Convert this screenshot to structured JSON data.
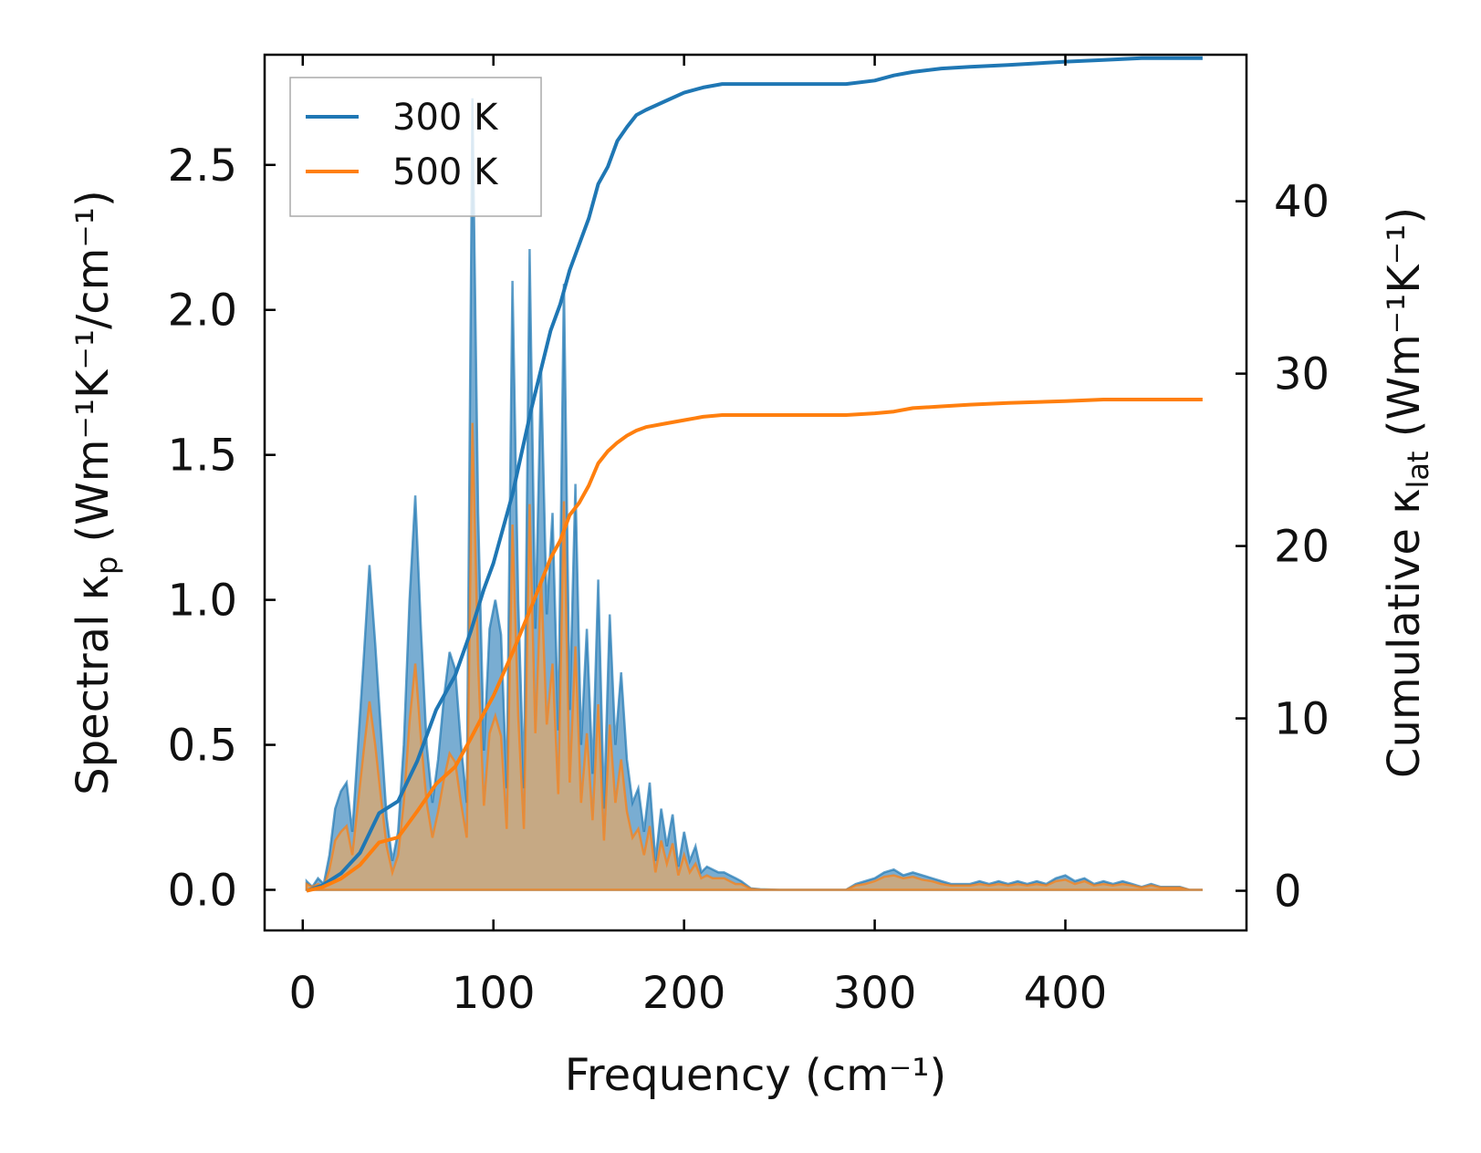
{
  "chart_data": {
    "type": "line",
    "title": "",
    "xlabel": "Frequency (cm⁻¹)",
    "ylabel_left": {
      "prefix": "Spectral κ",
      "subscript": "p",
      "suffix": " (Wm⁻¹K⁻¹/cm⁻¹)"
    },
    "ylabel_right": {
      "prefix": "Cumulative κ",
      "subscript": "lat",
      "suffix": " (Wm⁻¹K⁻¹)"
    },
    "xlim": [
      -20,
      495
    ],
    "ylim_left": [
      -0.14,
      2.88
    ],
    "ylim_right": [
      -2.3,
      48.5
    ],
    "xticks": [
      0,
      100,
      200,
      300,
      400
    ],
    "xtick_labels": [
      "0",
      "100",
      "200",
      "300",
      "400"
    ],
    "yticks_left": [
      0.0,
      0.5,
      1.0,
      1.5,
      2.0,
      2.5
    ],
    "ytick_labels_left": [
      "0.0",
      "0.5",
      "1.0",
      "1.5",
      "2.0",
      "2.5"
    ],
    "yticks_right": [
      0,
      10,
      20,
      30,
      40
    ],
    "ytick_labels_right": [
      "0",
      "10",
      "20",
      "30",
      "40"
    ],
    "legend_position": "top-left",
    "series": [
      {
        "name": "300 K",
        "color": "#1f77b4",
        "fill_color": "#1f77b4",
        "spectral": {
          "x": [
            2,
            5,
            8,
            11,
            14,
            17,
            20,
            23,
            26,
            29,
            32,
            35,
            38,
            41,
            44,
            47,
            50,
            53,
            56,
            59,
            62,
            65,
            68,
            71,
            74,
            77,
            80,
            83,
            86,
            89,
            92,
            95,
            98,
            101,
            104,
            107,
            110,
            113,
            116,
            119,
            122,
            125,
            128,
            131,
            134,
            137,
            140,
            143,
            146,
            149,
            152,
            155,
            158,
            161,
            164,
            167,
            170,
            173,
            176,
            179,
            182,
            185,
            188,
            191,
            194,
            197,
            200,
            203,
            206,
            209,
            212,
            215,
            218,
            221,
            224,
            227,
            230,
            235,
            240,
            250,
            260,
            270,
            280,
            285,
            290,
            295,
            300,
            305,
            310,
            315,
            320,
            325,
            330,
            335,
            340,
            345,
            350,
            355,
            360,
            365,
            370,
            375,
            380,
            385,
            390,
            395,
            400,
            405,
            410,
            415,
            420,
            425,
            430,
            435,
            440,
            445,
            450,
            455,
            460,
            465,
            472
          ],
          "y": [
            0.03,
            0.01,
            0.04,
            0.02,
            0.12,
            0.28,
            0.34,
            0.37,
            0.2,
            0.5,
            0.8,
            1.12,
            0.85,
            0.55,
            0.25,
            0.1,
            0.2,
            0.5,
            1.0,
            1.36,
            0.9,
            0.5,
            0.3,
            0.45,
            0.66,
            0.82,
            0.76,
            0.5,
            0.3,
            2.73,
            1.3,
            0.48,
            0.9,
            1.0,
            0.88,
            0.35,
            2.1,
            1.0,
            0.35,
            2.21,
            0.9,
            1.79,
            0.95,
            1.3,
            0.55,
            2.09,
            0.62,
            1.4,
            0.5,
            0.9,
            0.4,
            1.07,
            0.28,
            0.95,
            0.5,
            0.75,
            0.45,
            0.3,
            0.35,
            0.2,
            0.37,
            0.1,
            0.28,
            0.15,
            0.26,
            0.08,
            0.2,
            0.1,
            0.15,
            0.06,
            0.08,
            0.07,
            0.06,
            0.06,
            0.05,
            0.04,
            0.03,
            0.005,
            0.002,
            0.0,
            0.0,
            0.0,
            0.0,
            0.0,
            0.02,
            0.03,
            0.04,
            0.06,
            0.07,
            0.05,
            0.06,
            0.05,
            0.04,
            0.03,
            0.02,
            0.02,
            0.02,
            0.03,
            0.02,
            0.03,
            0.02,
            0.03,
            0.02,
            0.03,
            0.02,
            0.04,
            0.05,
            0.03,
            0.04,
            0.02,
            0.03,
            0.02,
            0.03,
            0.02,
            0.01,
            0.02,
            0.01,
            0.01,
            0.01,
            0.0,
            0.0
          ]
        },
        "cumulative": {
          "x": [
            2,
            10,
            20,
            30,
            40,
            50,
            60,
            70,
            80,
            88,
            95,
            100,
            110,
            120,
            130,
            135,
            140,
            145,
            150,
            155,
            160,
            165,
            170,
            175,
            180,
            190,
            200,
            210,
            220,
            230,
            240,
            250,
            260,
            270,
            285,
            300,
            310,
            320,
            335,
            350,
            370,
            400,
            420,
            440,
            460,
            472
          ],
          "y": [
            0,
            0.3,
            1.0,
            2.2,
            4.5,
            5.2,
            7.5,
            10.5,
            12.5,
            15,
            17.5,
            19,
            23,
            28,
            32.5,
            34,
            36,
            37.5,
            39,
            41,
            42,
            43.5,
            44.3,
            45,
            45.3,
            45.8,
            46.3,
            46.6,
            46.8,
            46.8,
            46.8,
            46.8,
            46.8,
            46.8,
            46.8,
            47.0,
            47.3,
            47.5,
            47.7,
            47.8,
            47.9,
            48.1,
            48.2,
            48.3,
            48.3,
            48.3
          ]
        }
      },
      {
        "name": "500 K",
        "color": "#ff7f0e",
        "fill_color": "#e0a86a",
        "spectral": {
          "x": [
            2,
            5,
            8,
            11,
            14,
            17,
            20,
            23,
            26,
            29,
            32,
            35,
            38,
            41,
            44,
            47,
            50,
            53,
            56,
            59,
            62,
            65,
            68,
            71,
            74,
            77,
            80,
            83,
            86,
            89,
            92,
            95,
            98,
            101,
            104,
            107,
            110,
            113,
            116,
            119,
            122,
            125,
            128,
            131,
            134,
            137,
            140,
            143,
            146,
            149,
            152,
            155,
            158,
            161,
            164,
            167,
            170,
            173,
            176,
            179,
            182,
            185,
            188,
            191,
            194,
            197,
            200,
            203,
            206,
            209,
            212,
            215,
            218,
            221,
            224,
            227,
            230,
            235,
            240,
            250,
            260,
            270,
            280,
            285,
            290,
            295,
            300,
            305,
            310,
            315,
            320,
            325,
            330,
            335,
            340,
            345,
            350,
            355,
            360,
            365,
            370,
            375,
            380,
            385,
            390,
            395,
            400,
            405,
            410,
            415,
            420,
            425,
            430,
            435,
            440,
            445,
            450,
            455,
            460,
            465,
            472
          ],
          "y": [
            0.02,
            0.01,
            0.02,
            0.01,
            0.07,
            0.17,
            0.2,
            0.22,
            0.12,
            0.3,
            0.48,
            0.65,
            0.5,
            0.32,
            0.15,
            0.06,
            0.12,
            0.3,
            0.58,
            0.78,
            0.52,
            0.3,
            0.18,
            0.27,
            0.38,
            0.47,
            0.44,
            0.3,
            0.18,
            1.61,
            0.78,
            0.29,
            0.54,
            0.6,
            0.53,
            0.21,
            1.26,
            0.6,
            0.21,
            1.33,
            0.54,
            1.07,
            0.57,
            0.78,
            0.33,
            1.34,
            0.37,
            0.84,
            0.3,
            0.54,
            0.24,
            0.64,
            0.17,
            0.57,
            0.3,
            0.45,
            0.27,
            0.18,
            0.21,
            0.12,
            0.22,
            0.06,
            0.17,
            0.09,
            0.16,
            0.05,
            0.12,
            0.06,
            0.09,
            0.04,
            0.05,
            0.04,
            0.04,
            0.04,
            0.03,
            0.02,
            0.02,
            0.003,
            0.001,
            0.0,
            0.0,
            0.0,
            0.0,
            0.0,
            0.015,
            0.02,
            0.03,
            0.045,
            0.05,
            0.04,
            0.045,
            0.035,
            0.03,
            0.02,
            0.015,
            0.015,
            0.015,
            0.02,
            0.015,
            0.02,
            0.015,
            0.02,
            0.015,
            0.02,
            0.015,
            0.03,
            0.035,
            0.02,
            0.03,
            0.015,
            0.02,
            0.015,
            0.02,
            0.015,
            0.008,
            0.015,
            0.008,
            0.008,
            0.008,
            0.0,
            0.0
          ]
        },
        "cumulative": {
          "x": [
            2,
            10,
            20,
            30,
            40,
            50,
            60,
            70,
            80,
            88,
            95,
            100,
            110,
            120,
            130,
            135,
            140,
            145,
            150,
            155,
            160,
            165,
            170,
            175,
            180,
            190,
            200,
            210,
            220,
            230,
            240,
            250,
            260,
            270,
            285,
            300,
            310,
            320,
            335,
            350,
            370,
            400,
            420,
            440,
            460,
            472
          ],
          "y": [
            0,
            0.2,
            0.7,
            1.5,
            2.8,
            3.1,
            4.6,
            6.2,
            7.2,
            8.8,
            10.3,
            11.3,
            13.8,
            16.5,
            19.3,
            20.3,
            21.8,
            22.5,
            23.5,
            24.8,
            25.5,
            26.0,
            26.4,
            26.7,
            26.9,
            27.1,
            27.3,
            27.5,
            27.6,
            27.6,
            27.6,
            27.6,
            27.6,
            27.6,
            27.6,
            27.7,
            27.8,
            28.0,
            28.1,
            28.2,
            28.3,
            28.4,
            28.5,
            28.5,
            28.5,
            28.5
          ]
        }
      }
    ]
  }
}
